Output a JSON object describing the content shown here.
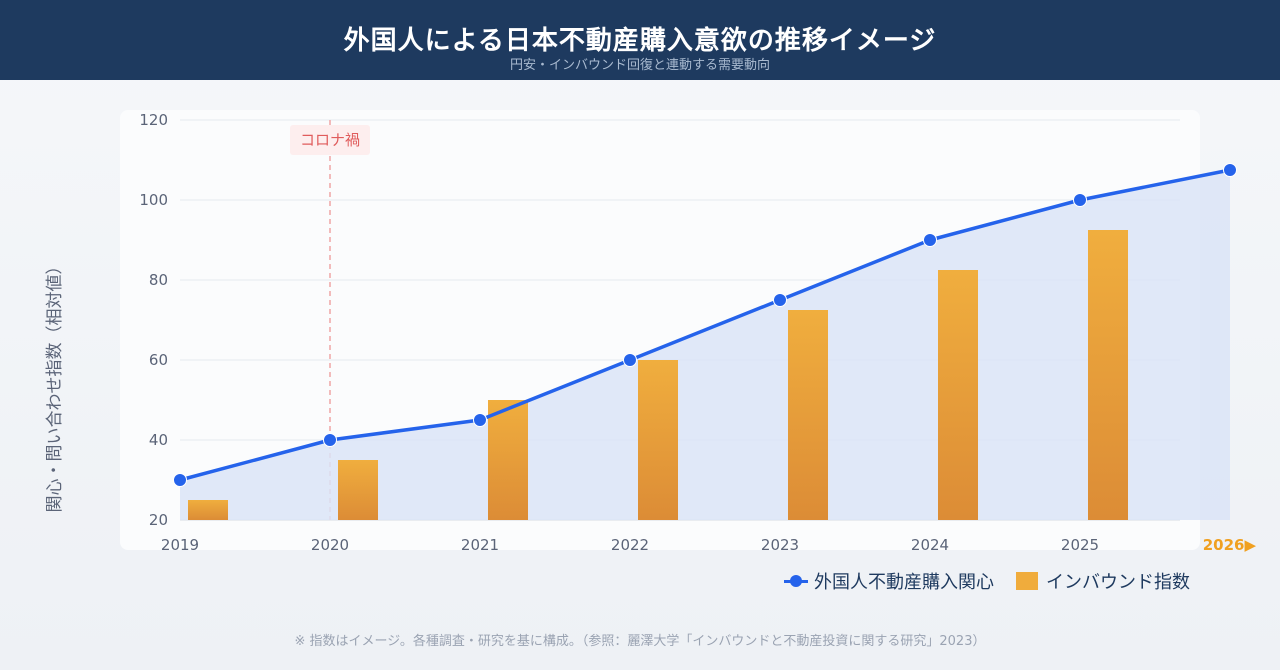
{
  "header": {
    "title": "外国人による日本不動産購入意欲の推移イメージ",
    "subtitle": "円安・インバウンド回復と連動する需要動向"
  },
  "colors": {
    "header_bg": "#1e3a5f",
    "line": "#2563eb",
    "area": "#dbe4f7",
    "bar_top": "#f0ae3e",
    "bar_bottom": "#dc8c36",
    "annotation": "#e05c5c",
    "highlight_tick": "#f0a020"
  },
  "chart_data": {
    "type": "bar+line",
    "categories": [
      "2019",
      "2020",
      "2021",
      "2022",
      "2023",
      "2024",
      "2025",
      "2026▶"
    ],
    "highlight_category": "2026▶",
    "ylabel": "関心・問い合わせ指数（相対値）",
    "ylim": [
      20,
      120
    ],
    "yticks": [
      20,
      40,
      60,
      80,
      100,
      120
    ],
    "grid": true,
    "series": [
      {
        "name": "外国人不動産購入関心",
        "type": "line",
        "area_fill": true,
        "values": [
          30,
          40,
          45,
          60,
          75,
          90,
          100,
          107.5
        ]
      },
      {
        "name": "インバウンド指数",
        "type": "bar",
        "values": [
          25,
          35,
          50,
          60,
          72.5,
          82.5,
          92.5,
          null
        ]
      }
    ],
    "annotations": [
      {
        "category": "2020",
        "label": "コロナ禍",
        "style": "dashed-vertical-line"
      }
    ]
  },
  "legend": {
    "line_label": "外国人不動産購入関心",
    "bar_label": "インバウンド指数"
  },
  "footnote": "※ 指数はイメージ。各種調査・研究を基に構成。（参照：麗澤大学「インバウンドと不動産投資に関する研究」2023）"
}
